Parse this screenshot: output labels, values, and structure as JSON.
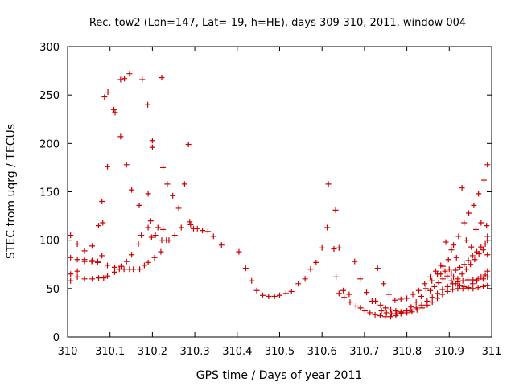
{
  "chart_data": {
    "type": "scatter",
    "title": "Rec. tow2 (Lon=147, Lat=-19, h=HE), days 309-310, 2011, window 004",
    "xlabel": "GPS time / Days of year 2011",
    "ylabel": "STEC from uqrg / TECUs",
    "xlim": [
      310,
      311
    ],
    "ylim": [
      0,
      300
    ],
    "grid": false,
    "marker": "+",
    "color": "#cc0000",
    "xticks": [
      {
        "value": 310,
        "label": "310"
      },
      {
        "value": 310.1,
        "label": "310.1"
      },
      {
        "value": 310.2,
        "label": "310.2"
      },
      {
        "value": 310.3,
        "label": "310.3"
      },
      {
        "value": 310.4,
        "label": "310.4"
      },
      {
        "value": 310.5,
        "label": "310.5"
      },
      {
        "value": 310.6,
        "label": "310.6"
      },
      {
        "value": 310.7,
        "label": "310.7"
      },
      {
        "value": 310.8,
        "label": "310.8"
      },
      {
        "value": 310.9,
        "label": "310.9"
      },
      {
        "value": 311,
        "label": "311"
      }
    ],
    "yticks": [
      {
        "value": 0,
        "label": "0"
      },
      {
        "value": 50,
        "label": "50"
      },
      {
        "value": 100,
        "label": "100"
      },
      {
        "value": 150,
        "label": "150"
      },
      {
        "value": 200,
        "label": "200"
      },
      {
        "value": 250,
        "label": "250"
      },
      {
        "value": 300,
        "label": "300"
      }
    ],
    "points": [
      [
        310.007,
        105
      ],
      [
        310.023,
        96
      ],
      [
        310.04,
        89
      ],
      [
        310.058,
        94
      ],
      [
        310.073,
        115
      ],
      [
        310.081,
        140
      ],
      [
        310.094,
        176
      ],
      [
        310.112,
        232
      ],
      [
        310.125,
        207
      ],
      [
        310.139,
        178
      ],
      [
        310.151,
        152
      ],
      [
        310.169,
        136
      ],
      [
        310.19,
        148
      ],
      [
        310.196,
        120
      ],
      [
        310.207,
        105
      ],
      [
        310.222,
        100
      ],
      [
        310.239,
        100
      ],
      [
        310.253,
        105
      ],
      [
        310.268,
        113
      ],
      [
        310.288,
        119
      ],
      [
        310.297,
        112
      ],
      [
        310.007,
        82
      ],
      [
        310.023,
        80
      ],
      [
        310.04,
        80
      ],
      [
        310.058,
        79
      ],
      [
        310.071,
        78
      ],
      [
        310.081,
        84
      ],
      [
        310.094,
        74
      ],
      [
        310.111,
        72
      ],
      [
        310.126,
        73
      ],
      [
        310.139,
        78
      ],
      [
        310.151,
        85
      ],
      [
        310.167,
        96
      ],
      [
        310.174,
        105
      ],
      [
        310.19,
        113
      ],
      [
        310.198,
        103
      ],
      [
        310.213,
        113
      ],
      [
        310.225,
        111
      ],
      [
        310.233,
        100
      ],
      [
        310.007,
        65
      ],
      [
        310.023,
        62
      ],
      [
        310.04,
        60
      ],
      [
        310.058,
        60
      ],
      [
        310.073,
        61
      ],
      [
        310.085,
        61
      ],
      [
        310.094,
        63
      ],
      [
        310.111,
        67
      ],
      [
        310.122,
        70
      ],
      [
        310.133,
        70
      ],
      [
        310.146,
        70
      ],
      [
        310.155,
        70
      ],
      [
        310.17,
        70
      ],
      [
        310.181,
        74
      ],
      [
        310.19,
        77
      ],
      [
        310.205,
        82
      ],
      [
        310.22,
        88
      ],
      [
        310.007,
        58
      ],
      [
        310.023,
        68
      ],
      [
        310.04,
        78
      ],
      [
        310.057,
        78
      ],
      [
        310.071,
        77
      ],
      [
        310.083,
        118
      ],
      [
        310.087,
        248
      ],
      [
        310.095,
        253
      ],
      [
        310.109,
        235
      ],
      [
        310.125,
        266
      ],
      [
        310.134,
        267
      ],
      [
        310.146,
        272
      ],
      [
        310.176,
        266
      ],
      [
        310.189,
        240
      ],
      [
        310.2,
        203
      ],
      [
        310.2,
        196
      ],
      [
        310.222,
        268
      ],
      [
        310.225,
        175
      ],
      [
        310.235,
        158
      ],
      [
        310.248,
        146
      ],
      [
        310.262,
        133
      ],
      [
        310.276,
        158
      ],
      [
        310.285,
        199
      ],
      [
        310.29,
        116
      ],
      [
        310.306,
        112
      ],
      [
        310.318,
        110
      ],
      [
        310.331,
        109
      ],
      [
        310.344,
        104
      ],
      [
        310.363,
        95
      ],
      [
        310.404,
        88
      ],
      [
        310.42,
        71
      ],
      [
        310.434,
        58
      ],
      [
        310.446,
        48
      ],
      [
        310.46,
        43
      ],
      [
        310.474,
        42
      ],
      [
        310.488,
        42
      ],
      [
        310.5,
        43
      ],
      [
        310.515,
        45
      ],
      [
        310.528,
        47
      ],
      [
        310.544,
        55
      ],
      [
        310.56,
        60
      ],
      [
        310.573,
        70
      ],
      [
        310.586,
        77
      ],
      [
        310.6,
        92
      ],
      [
        310.612,
        113
      ],
      [
        310.615,
        158
      ],
      [
        310.628,
        91
      ],
      [
        310.632,
        131
      ],
      [
        310.64,
        92
      ],
      [
        310.64,
        45
      ],
      [
        310.652,
        41
      ],
      [
        310.666,
        36
      ],
      [
        310.68,
        32
      ],
      [
        310.691,
        30
      ],
      [
        310.701,
        27
      ],
      [
        310.713,
        25
      ],
      [
        310.725,
        23
      ],
      [
        310.737,
        22
      ],
      [
        310.749,
        21
      ],
      [
        310.762,
        21
      ],
      [
        310.774,
        22
      ],
      [
        310.786,
        24
      ],
      [
        310.8,
        27
      ],
      [
        310.81,
        31
      ],
      [
        310.822,
        36
      ],
      [
        310.834,
        42
      ],
      [
        310.845,
        50
      ],
      [
        310.859,
        58
      ],
      [
        310.872,
        65
      ],
      [
        310.885,
        73
      ],
      [
        310.898,
        80
      ],
      [
        310.91,
        95
      ],
      [
        310.922,
        104
      ],
      [
        310.935,
        118
      ],
      [
        310.946,
        128
      ],
      [
        310.958,
        136
      ],
      [
        310.969,
        148
      ],
      [
        310.982,
        162
      ],
      [
        310.99,
        178
      ],
      [
        310.633,
        62
      ],
      [
        310.65,
        48
      ],
      [
        310.664,
        44
      ],
      [
        310.677,
        78
      ],
      [
        310.69,
        60
      ],
      [
        310.705,
        46
      ],
      [
        310.718,
        37
      ],
      [
        310.731,
        71
      ],
      [
        310.745,
        55
      ],
      [
        310.758,
        44
      ],
      [
        310.772,
        38
      ],
      [
        310.786,
        39
      ],
      [
        310.8,
        40
      ],
      [
        310.814,
        44
      ],
      [
        310.828,
        48
      ],
      [
        310.842,
        55
      ],
      [
        310.855,
        62
      ],
      [
        310.868,
        68
      ],
      [
        310.88,
        74
      ],
      [
        310.892,
        98
      ],
      [
        310.905,
        90
      ],
      [
        310.917,
        82
      ],
      [
        310.93,
        154
      ],
      [
        310.94,
        100
      ],
      [
        310.952,
        93
      ],
      [
        310.963,
        111
      ],
      [
        310.975,
        118
      ],
      [
        310.988,
        115
      ],
      [
        310.99,
        104
      ],
      [
        310.726,
        37
      ],
      [
        310.738,
        33
      ],
      [
        310.75,
        30
      ],
      [
        310.762,
        28
      ],
      [
        310.774,
        27
      ],
      [
        310.786,
        26
      ],
      [
        310.798,
        27
      ],
      [
        310.81,
        28
      ],
      [
        310.822,
        30
      ],
      [
        310.835,
        33
      ],
      [
        310.848,
        37
      ],
      [
        310.86,
        41
      ],
      [
        310.872,
        45
      ],
      [
        310.884,
        49
      ],
      [
        310.896,
        52
      ],
      [
        310.908,
        55
      ],
      [
        310.92,
        57
      ],
      [
        310.932,
        58
      ],
      [
        310.944,
        59
      ],
      [
        310.956,
        59
      ],
      [
        310.968,
        60
      ],
      [
        310.98,
        60
      ],
      [
        310.99,
        62
      ],
      [
        310.74,
        27
      ],
      [
        310.752,
        25
      ],
      [
        310.764,
        24
      ],
      [
        310.776,
        24
      ],
      [
        310.788,
        25
      ],
      [
        310.8,
        25
      ],
      [
        310.812,
        26
      ],
      [
        310.824,
        28
      ],
      [
        310.836,
        30
      ],
      [
        310.848,
        33
      ],
      [
        310.86,
        36
      ],
      [
        310.872,
        40
      ],
      [
        310.884,
        44
      ],
      [
        310.896,
        47
      ],
      [
        310.908,
        49
      ],
      [
        310.92,
        50
      ],
      [
        310.932,
        50
      ],
      [
        310.944,
        50
      ],
      [
        310.956,
        50
      ],
      [
        310.968,
        51
      ],
      [
        310.98,
        52
      ],
      [
        310.99,
        53
      ],
      [
        310.855,
        48
      ],
      [
        310.865,
        52
      ],
      [
        310.875,
        56
      ],
      [
        310.885,
        60
      ],
      [
        310.895,
        63
      ],
      [
        310.905,
        66
      ],
      [
        310.915,
        69
      ],
      [
        310.925,
        72
      ],
      [
        310.935,
        75
      ],
      [
        310.945,
        79
      ],
      [
        310.955,
        84
      ],
      [
        310.965,
        88
      ],
      [
        310.975,
        93
      ],
      [
        310.985,
        96
      ],
      [
        310.99,
        100
      ],
      [
        310.88,
        65
      ],
      [
        310.89,
        68
      ],
      [
        310.9,
        70
      ],
      [
        310.91,
        62
      ],
      [
        310.92,
        60
      ],
      [
        310.93,
        65
      ],
      [
        310.94,
        70
      ],
      [
        310.95,
        75
      ],
      [
        310.96,
        80
      ],
      [
        310.97,
        86
      ],
      [
        310.98,
        90
      ],
      [
        310.99,
        85
      ],
      [
        310.905,
        58
      ],
      [
        310.915,
        55
      ],
      [
        310.925,
        53
      ],
      [
        310.935,
        52
      ],
      [
        310.945,
        51
      ],
      [
        310.955,
        55
      ],
      [
        310.965,
        58
      ],
      [
        310.975,
        62
      ],
      [
        310.985,
        64
      ],
      [
        310.99,
        68
      ]
    ]
  }
}
